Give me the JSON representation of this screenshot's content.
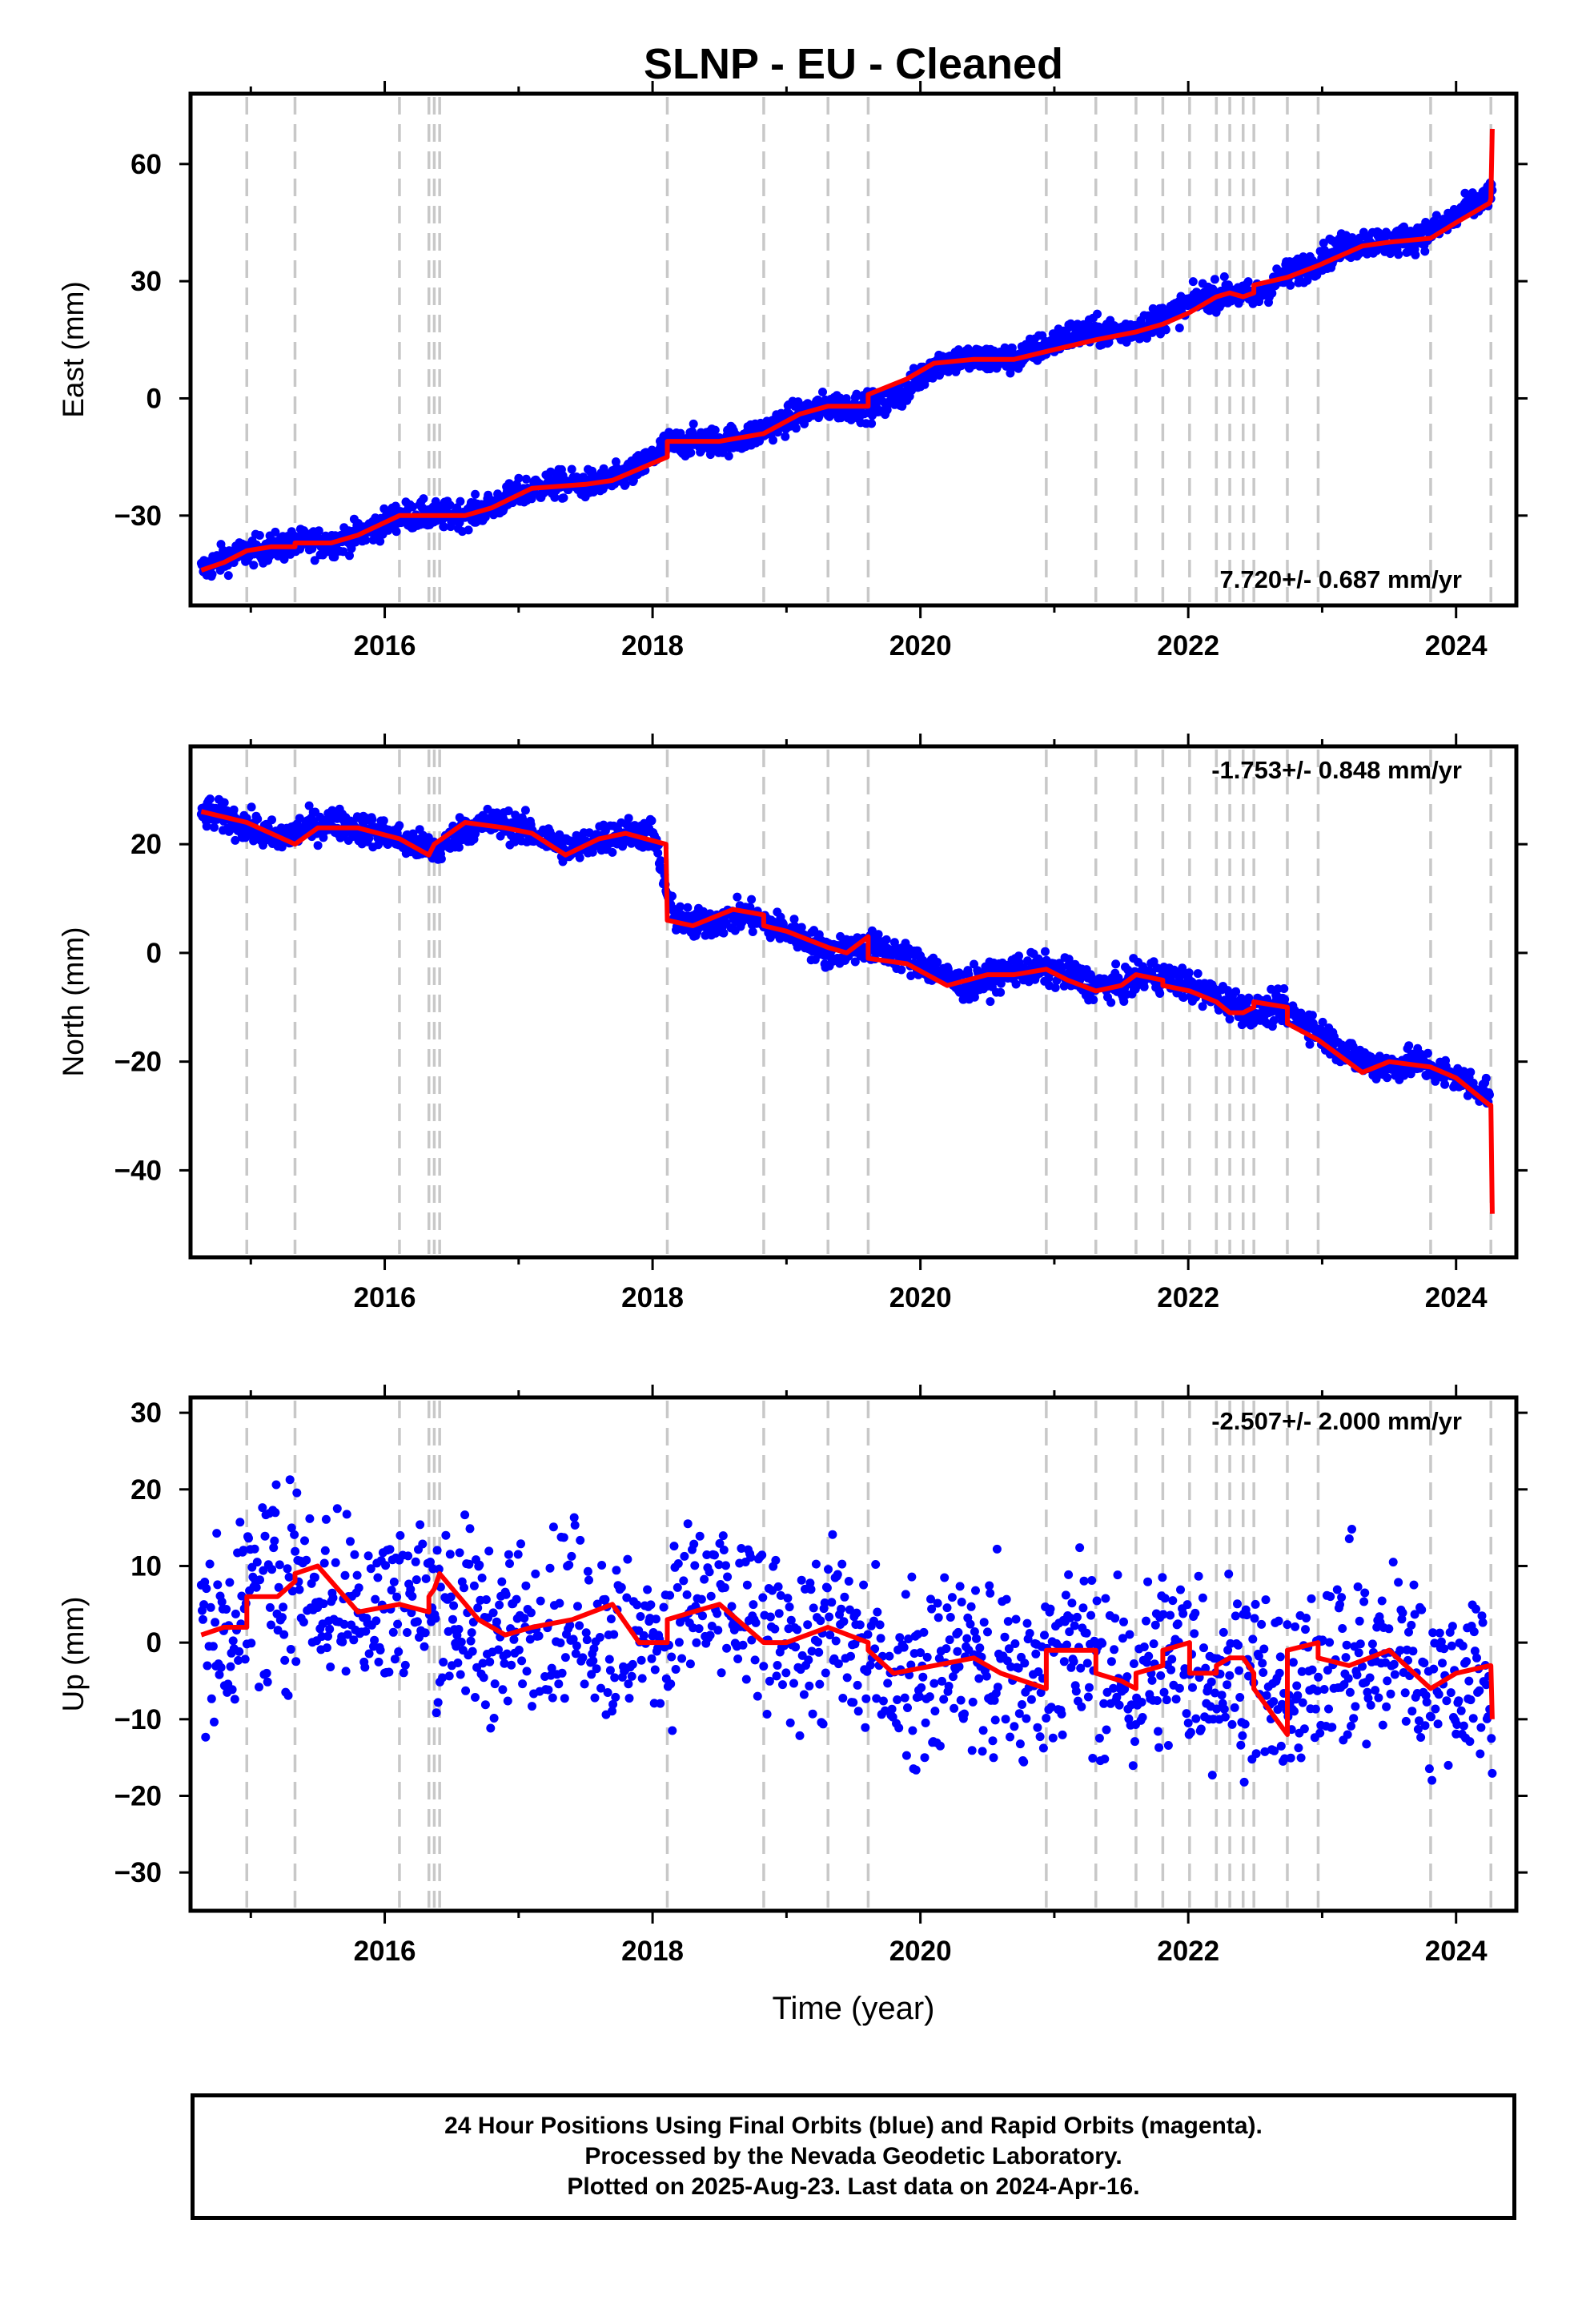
{
  "title": "SLNP  - EU - Cleaned",
  "colors": {
    "daily": "#0000ff",
    "model": "#ff0000",
    "events": "#c8c8c8"
  },
  "footer": {
    "line1": "24 Hour Positions Using Final Orbits (blue) and Rapid Orbits (magenta).",
    "line2": "Processed by the Nevada Geodetic Laboratory.",
    "line3": "Plotted on 2025-Aug-23. Last data on 2024-Apr-16."
  },
  "chart_data": [
    {
      "type": "scatter",
      "title": "SLNP  - EU - Cleaned",
      "xlabel": "",
      "ylabel": "East (mm)",
      "xlim": [
        2014.55,
        2024.45
      ],
      "ylim": [
        -53,
        78
      ],
      "xticks": [
        2016,
        2018,
        2020,
        2022,
        2024
      ],
      "yticks": [
        -30,
        0,
        30,
        60
      ],
      "grid": false,
      "rate_label": "7.720+/- 0.687 mm/yr",
      "rate_position": "bottom-right",
      "event_lines": [
        2014.97,
        2015.33,
        2016.11,
        2016.33,
        2016.37,
        2016.41,
        2018.11,
        2018.83,
        2019.31,
        2019.61,
        2020.94,
        2021.31,
        2021.61,
        2021.81,
        2022.01,
        2022.21,
        2022.31,
        2022.41,
        2022.49,
        2022.74,
        2022.97,
        2023.81,
        2024.26
      ],
      "series": [
        {
          "name": "daily position",
          "x": [
            2014.63,
            2014.8,
            2015.0,
            2015.2,
            2015.4,
            2015.6,
            2015.8,
            2016.0,
            2016.1,
            2016.3,
            2016.5,
            2016.7,
            2016.9,
            2017.1,
            2017.3,
            2017.5,
            2017.7,
            2017.9,
            2018.1,
            2018.3,
            2018.5,
            2018.7,
            2018.9,
            2019.1,
            2019.3,
            2019.5,
            2019.7,
            2019.9,
            2020.1,
            2020.3,
            2020.5,
            2020.7,
            2020.9,
            2021.1,
            2021.3,
            2021.5,
            2021.7,
            2021.9,
            2022.1,
            2022.3,
            2022.5,
            2022.7,
            2022.9,
            2023.1,
            2023.3,
            2023.5,
            2023.7,
            2023.9,
            2024.1,
            2024.27
          ],
          "y": [
            -44,
            -41,
            -39,
            -38,
            -37,
            -37,
            -35,
            -32,
            -30,
            -30,
            -30,
            -29,
            -26,
            -23,
            -22,
            -22,
            -21,
            -18,
            -12,
            -11,
            -11,
            -10,
            -7,
            -4,
            -2,
            -2,
            -2,
            2,
            9,
            10,
            10,
            10,
            13,
            16,
            17,
            17,
            19,
            22,
            26,
            27,
            26,
            31,
            34,
            38,
            40,
            40,
            41,
            44,
            49,
            52
          ],
          "spread": 1.8
        },
        {
          "name": "model",
          "x": [
            2014.63,
            2014.8,
            2014.97,
            2015.15,
            2015.33,
            2015.33,
            2015.6,
            2015.8,
            2016.11,
            2016.4,
            2016.6,
            2016.8,
            2017.1,
            2017.5,
            2017.7,
            2018.11,
            2018.11,
            2018.5,
            2018.83,
            2019.1,
            2019.31,
            2019.61,
            2019.61,
            2019.9,
            2020.1,
            2020.4,
            2020.7,
            2020.94,
            2021.31,
            2021.61,
            2021.81,
            2022.01,
            2022.21,
            2022.31,
            2022.41,
            2022.49,
            2022.49,
            2022.74,
            2022.97,
            2023.3,
            2023.5,
            2023.81,
            2024.0,
            2024.25,
            2024.26,
            2024.27
          ],
          "y": [
            -44,
            -42,
            -39,
            -38,
            -38,
            -37,
            -37,
            -35,
            -30,
            -30,
            -30,
            -28,
            -23,
            -22,
            -21,
            -15,
            -11,
            -11,
            -9,
            -4,
            -2,
            -2,
            1,
            5,
            9,
            10,
            10,
            12,
            15,
            17,
            19,
            22,
            26,
            27,
            26,
            27,
            29,
            31,
            34,
            39,
            40,
            41,
            45,
            50,
            51,
            69
          ]
        }
      ]
    },
    {
      "type": "scatter",
      "xlabel": "",
      "ylabel": "North (mm)",
      "xlim": [
        2014.55,
        2024.45
      ],
      "ylim": [
        -56,
        38
      ],
      "xticks": [
        2016,
        2018,
        2020,
        2022,
        2024
      ],
      "yticks": [
        -40,
        -20,
        0,
        20
      ],
      "grid": false,
      "rate_label": "-1.753+/- 0.848 mm/yr",
      "rate_position": "top-right",
      "event_lines": [
        2014.97,
        2015.33,
        2016.11,
        2016.33,
        2016.37,
        2016.41,
        2018.11,
        2018.83,
        2019.31,
        2019.61,
        2020.94,
        2021.31,
        2021.61,
        2021.81,
        2022.01,
        2022.21,
        2022.31,
        2022.41,
        2022.49,
        2022.74,
        2022.97,
        2023.81,
        2024.26
      ],
      "series": [
        {
          "name": "daily position",
          "x": [
            2014.63,
            2014.8,
            2015.0,
            2015.2,
            2015.4,
            2015.6,
            2015.8,
            2016.0,
            2016.2,
            2016.4,
            2016.6,
            2016.8,
            2017.0,
            2017.2,
            2017.4,
            2017.6,
            2017.8,
            2018.0,
            2018.15,
            2018.3,
            2018.5,
            2018.7,
            2018.9,
            2019.1,
            2019.3,
            2019.5,
            2019.7,
            2019.9,
            2020.1,
            2020.3,
            2020.5,
            2020.7,
            2020.9,
            2021.1,
            2021.3,
            2021.5,
            2021.7,
            2021.9,
            2022.1,
            2022.3,
            2022.5,
            2022.7,
            2022.9,
            2023.1,
            2023.3,
            2023.5,
            2023.7,
            2023.9,
            2024.1,
            2024.25
          ],
          "y": [
            26,
            25,
            23,
            21,
            23,
            24,
            23,
            22,
            20,
            19,
            23,
            24,
            23,
            21,
            19,
            21,
            22,
            22,
            7,
            5,
            6,
            7,
            5,
            3,
            0,
            1,
            1,
            -1,
            -3,
            -6,
            -5,
            -3,
            -3,
            -4,
            -6,
            -6,
            -4,
            -5,
            -7,
            -9,
            -11,
            -10,
            -13,
            -17,
            -20,
            -21,
            -20,
            -22,
            -24,
            -26
          ],
          "spread": 1.4
        },
        {
          "name": "model",
          "x": [
            2014.63,
            2014.97,
            2015.33,
            2015.5,
            2015.8,
            2016.11,
            2016.33,
            2016.37,
            2016.6,
            2016.9,
            2017.1,
            2017.35,
            2017.6,
            2017.8,
            2018.1,
            2018.11,
            2018.3,
            2018.6,
            2018.83,
            2018.83,
            2019.0,
            2019.31,
            2019.45,
            2019.61,
            2019.61,
            2019.9,
            2020.2,
            2020.5,
            2020.7,
            2020.94,
            2021.1,
            2021.31,
            2021.5,
            2021.61,
            2021.81,
            2021.81,
            2022.01,
            2022.21,
            2022.31,
            2022.41,
            2022.49,
            2022.49,
            2022.74,
            2022.74,
            2022.97,
            2023.3,
            2023.5,
            2023.81,
            2024.0,
            2024.25,
            2024.26,
            2024.27
          ],
          "y": [
            26,
            24,
            20,
            23,
            23,
            21,
            18,
            20,
            24,
            23,
            22,
            18,
            21,
            22,
            20,
            6,
            5,
            8,
            7,
            5,
            4,
            1,
            0,
            3,
            -1,
            -2,
            -6,
            -4,
            -4,
            -3,
            -5,
            -7,
            -6,
            -4,
            -5,
            -6,
            -7,
            -9,
            -11,
            -11,
            -10,
            -9,
            -10,
            -13,
            -16,
            -22,
            -20,
            -21,
            -23,
            -28,
            -28,
            -48
          ]
        }
      ]
    },
    {
      "type": "scatter",
      "xlabel": "Time (year)",
      "ylabel": "Up (mm)",
      "xlim": [
        2014.55,
        2024.45
      ],
      "ylim": [
        -35,
        32
      ],
      "xticks": [
        2016,
        2018,
        2020,
        2022,
        2024
      ],
      "yticks": [
        -30,
        -20,
        -10,
        0,
        10,
        20,
        30
      ],
      "grid": false,
      "rate_label": "-2.507+/- 2.000 mm/yr",
      "rate_position": "top-right",
      "event_lines": [
        2014.97,
        2015.33,
        2016.11,
        2016.33,
        2016.37,
        2016.41,
        2018.11,
        2018.83,
        2019.31,
        2019.61,
        2020.94,
        2021.31,
        2021.61,
        2021.81,
        2022.01,
        2022.21,
        2022.31,
        2022.41,
        2022.49,
        2022.74,
        2022.97,
        2023.81,
        2024.26
      ],
      "series": [
        {
          "name": "daily position",
          "x": [
            2014.63,
            2014.8,
            2014.97,
            2015.2,
            2015.4,
            2015.6,
            2015.8,
            2016.0,
            2016.2,
            2016.4,
            2016.6,
            2016.8,
            2017.0,
            2017.2,
            2017.4,
            2017.6,
            2017.8,
            2018.0,
            2018.2,
            2018.4,
            2018.6,
            2018.8,
            2019.0,
            2019.2,
            2019.4,
            2019.6,
            2019.8,
            2020.0,
            2020.2,
            2020.4,
            2020.6,
            2020.8,
            2021.0,
            2021.2,
            2021.4,
            2021.6,
            2021.8,
            2022.0,
            2022.2,
            2022.4,
            2022.6,
            2022.8,
            2023.0,
            2023.2,
            2023.4,
            2023.6,
            2023.8,
            2024.0,
            2024.2,
            2024.27
          ],
          "y": [
            1,
            2,
            6,
            7,
            9,
            5,
            4,
            5,
            5,
            6,
            3,
            2,
            2,
            3,
            4,
            2,
            -1,
            1,
            3,
            5,
            4,
            1,
            0,
            1,
            1,
            -2,
            -4,
            -3,
            -3,
            -2,
            -5,
            -6,
            -1,
            0,
            -4,
            -6,
            -2,
            -3,
            -4,
            -2,
            -6,
            -8,
            -1,
            -2,
            -2,
            -1,
            -5,
            -5,
            -3,
            -8
          ],
          "spread": 6.0
        },
        {
          "name": "model",
          "x": [
            2014.63,
            2014.8,
            2014.97,
            2014.97,
            2015.2,
            2015.33,
            2015.33,
            2015.5,
            2015.8,
            2016.11,
            2016.33,
            2016.33,
            2016.37,
            2016.41,
            2016.7,
            2016.9,
            2017.1,
            2017.4,
            2017.7,
            2017.9,
            2018.11,
            2018.11,
            2018.3,
            2018.5,
            2018.83,
            2019.0,
            2019.31,
            2019.61,
            2019.61,
            2019.8,
            2020.1,
            2020.4,
            2020.6,
            2020.94,
            2020.94,
            2021.31,
            2021.31,
            2021.5,
            2021.61,
            2021.61,
            2021.81,
            2021.81,
            2022.01,
            2022.01,
            2022.21,
            2022.21,
            2022.31,
            2022.41,
            2022.49,
            2022.49,
            2022.74,
            2022.74,
            2022.97,
            2022.97,
            2023.2,
            2023.5,
            2023.81,
            2024.0,
            2024.25,
            2024.26,
            2024.27
          ],
          "y": [
            1,
            2,
            2,
            6,
            6,
            8,
            9,
            10,
            4,
            5,
            4,
            6,
            7,
            9,
            3,
            1,
            2,
            3,
            5,
            0,
            0,
            3,
            4,
            5,
            0,
            0,
            2,
            0,
            -1,
            -4,
            -3,
            -2,
            -4,
            -6,
            -1,
            -1,
            -4,
            -5,
            -6,
            -4,
            -3,
            -1,
            0,
            -4,
            -4,
            -3,
            -2,
            -2,
            -4,
            -6,
            -12,
            -1,
            0,
            -2,
            -3,
            -1,
            -6,
            -4,
            -3,
            -3,
            -10
          ]
        }
      ]
    }
  ]
}
